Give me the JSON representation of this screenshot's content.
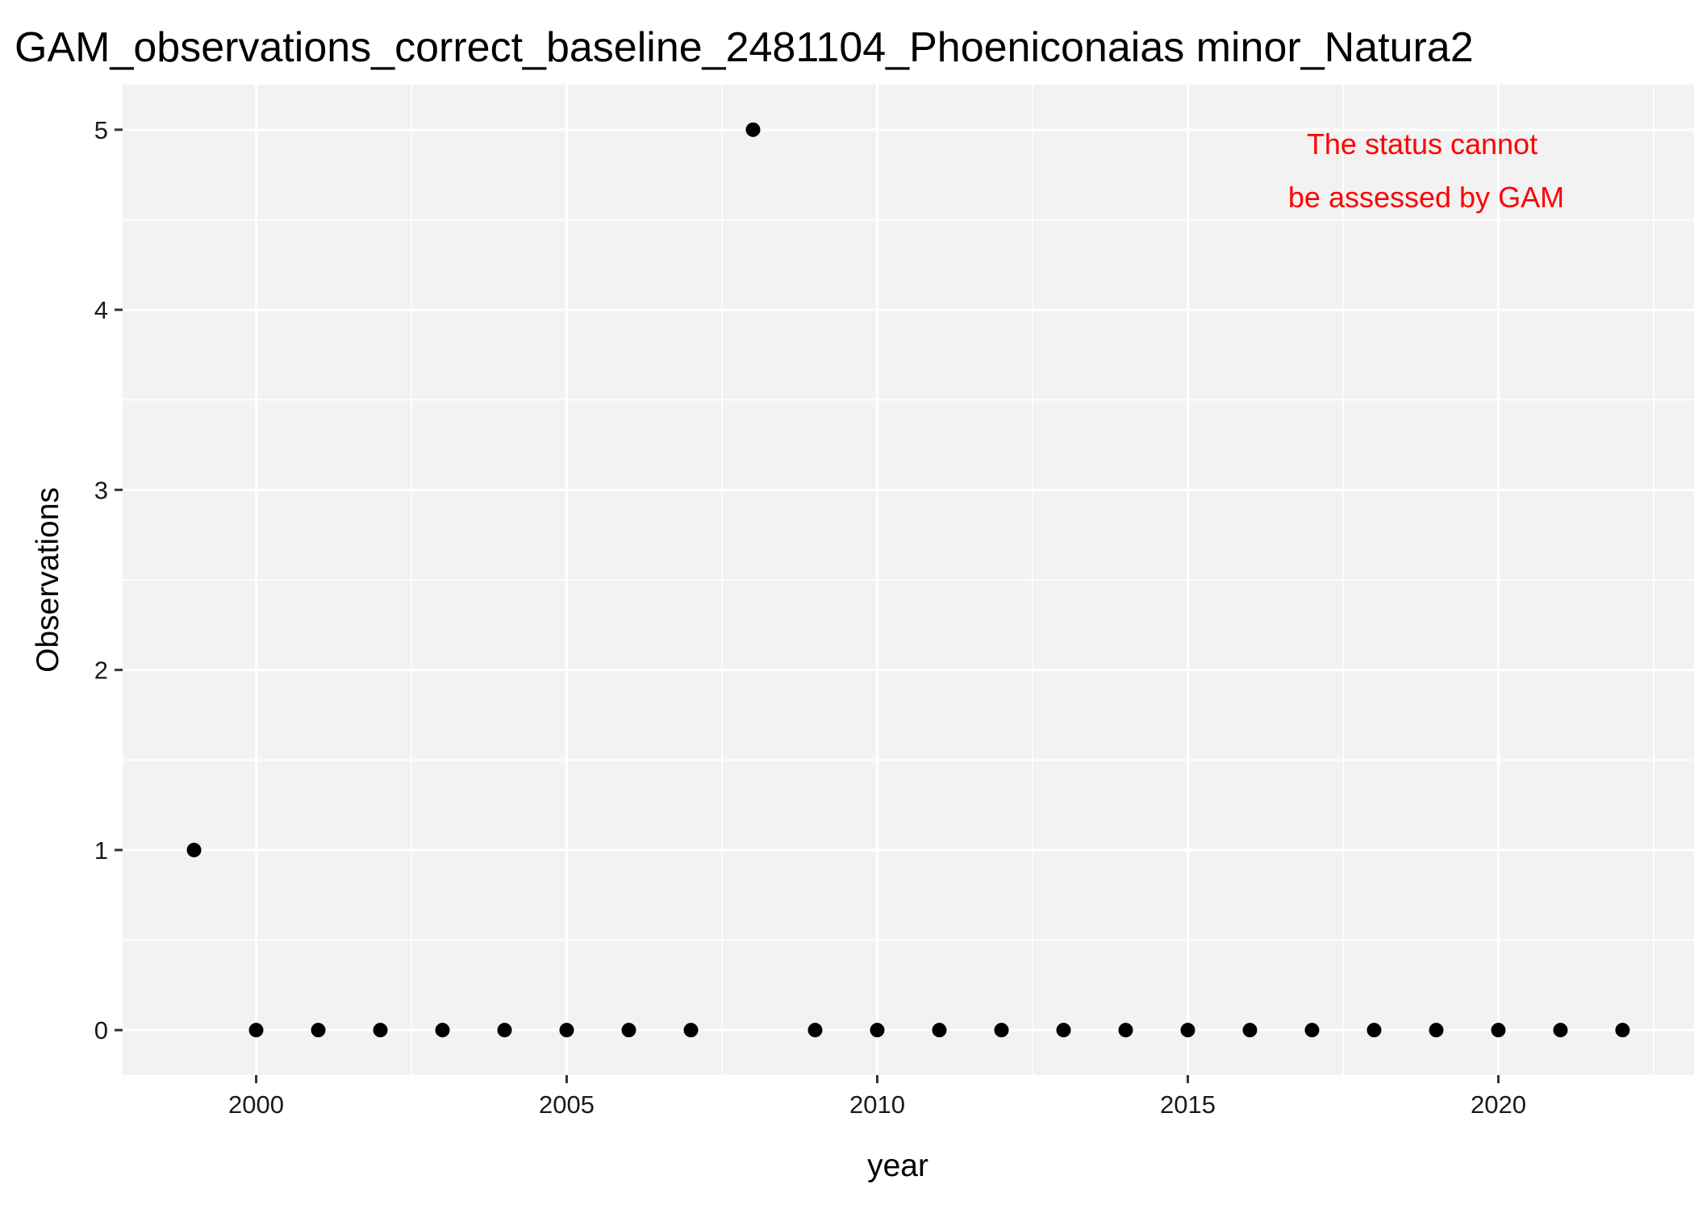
{
  "chart_data": {
    "type": "scatter",
    "title": "GAM_observations_correct_baseline_2481104_Phoeniconaias minor_Natura2",
    "xlabel": "year",
    "ylabel": "Observations",
    "xlim": [
      1997.85,
      2023.15
    ],
    "ylim": [
      -0.25,
      5.25
    ],
    "x_ticks": [
      2000,
      2005,
      2010,
      2015,
      2020
    ],
    "x_minor_ticks": [
      1997.5,
      2002.5,
      2007.5,
      2012.5,
      2017.5,
      2022.5
    ],
    "y_ticks": [
      0,
      1,
      2,
      3,
      4,
      5
    ],
    "grid": true,
    "background": "#f2f2f2",
    "grid_color": "#ffffff",
    "point_color": "#000000",
    "annotation": {
      "lines": [
        "The status cannot",
        "be assessed by GAM"
      ],
      "color": "#ff0000",
      "placement": "top-right"
    },
    "points": [
      {
        "x": 1999,
        "y": 1
      },
      {
        "x": 2000,
        "y": 0
      },
      {
        "x": 2001,
        "y": 0
      },
      {
        "x": 2002,
        "y": 0
      },
      {
        "x": 2003,
        "y": 0
      },
      {
        "x": 2004,
        "y": 0
      },
      {
        "x": 2005,
        "y": 0
      },
      {
        "x": 2006,
        "y": 0
      },
      {
        "x": 2007,
        "y": 0
      },
      {
        "x": 2008,
        "y": 5
      },
      {
        "x": 2009,
        "y": 0
      },
      {
        "x": 2010,
        "y": 0
      },
      {
        "x": 2011,
        "y": 0
      },
      {
        "x": 2012,
        "y": 0
      },
      {
        "x": 2013,
        "y": 0
      },
      {
        "x": 2014,
        "y": 0
      },
      {
        "x": 2015,
        "y": 0
      },
      {
        "x": 2016,
        "y": 0
      },
      {
        "x": 2017,
        "y": 0
      },
      {
        "x": 2018,
        "y": 0
      },
      {
        "x": 2019,
        "y": 0
      },
      {
        "x": 2020,
        "y": 0
      },
      {
        "x": 2021,
        "y": 0
      },
      {
        "x": 2022,
        "y": 0
      }
    ]
  }
}
